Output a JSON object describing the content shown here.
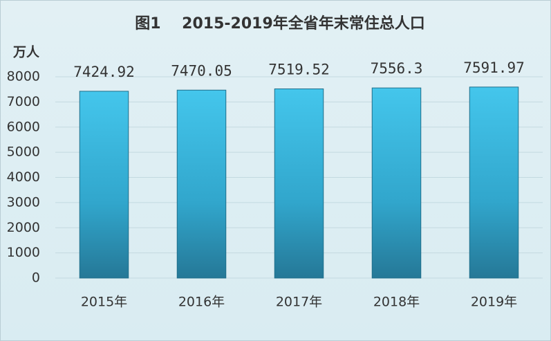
{
  "chart_data": {
    "type": "bar",
    "title": "图1    2015-2019年全省年末常住总人口",
    "y_axis_label": "万人",
    "categories": [
      "2015年",
      "2016年",
      "2017年",
      "2018年",
      "2019年"
    ],
    "values": [
      7424.92,
      7470.05,
      7519.52,
      7556.3,
      7591.97
    ],
    "color": "#35b3da",
    "ylim": [
      0,
      8000
    ],
    "yticks": [
      0,
      1000,
      2000,
      3000,
      4000,
      5000,
      6000,
      7000,
      8000
    ],
    "grid": true
  }
}
